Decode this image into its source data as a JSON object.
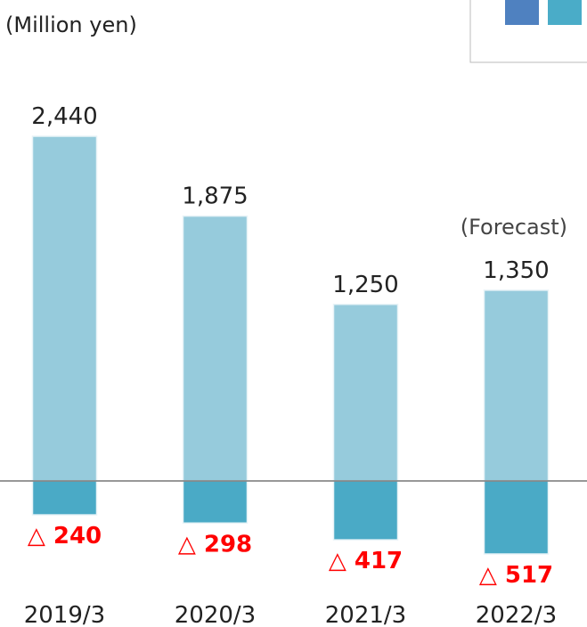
{
  "chart_data": {
    "type": "bar",
    "unit_label": "(Million yen)",
    "annotation": "(Forecast)",
    "categories": [
      "2019/3",
      "2020/3",
      "2021/3",
      "2022/3"
    ],
    "series": [
      {
        "color": "#96cbdc",
        "values": [
          2440,
          1875,
          1250,
          1350
        ],
        "value_labels": [
          "2,440",
          "1,875",
          "1,250",
          "1,350"
        ]
      },
      {
        "color": "#4aaac6",
        "values": [
          -240,
          -298,
          -417,
          -517
        ],
        "value_labels": [
          "△ 240",
          "△ 298",
          "△ 417",
          "△ 517"
        ]
      }
    ],
    "ylim": [
      -1000,
      3000
    ]
  }
}
